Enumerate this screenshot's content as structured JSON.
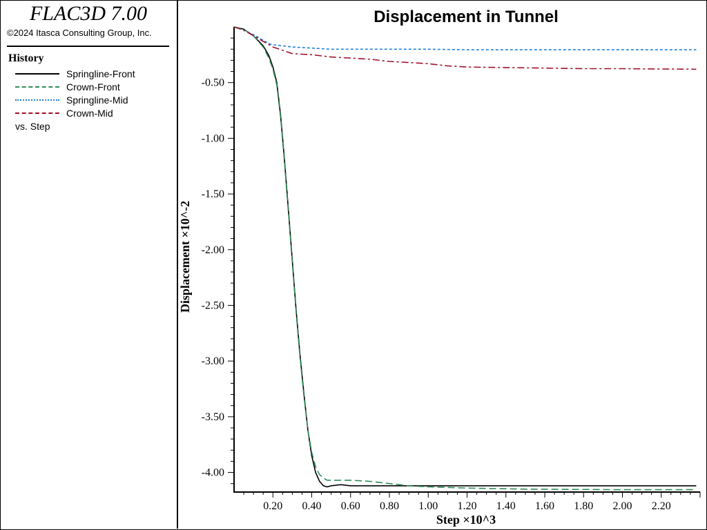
{
  "app": {
    "title": "FLAC3D 7.00",
    "copyright": "©2024 Itasca Consulting Group, Inc."
  },
  "legend": {
    "heading": "History",
    "footer": "vs. Step"
  },
  "colors": {
    "springline_front": "#000000",
    "crown_front": "#2e8b57",
    "springline_mid": "#1e7fd8",
    "crown_mid": "#a0102a"
  },
  "chart_data": {
    "type": "line",
    "title": "Displacement in Tunnel",
    "xlabel": "Step ×10^3",
    "ylabel": "Displacement ×10^-2",
    "xlim": [
      0,
      2.4
    ],
    "ylim": [
      -4.17,
      0
    ],
    "x_ticks": [
      "0.20",
      "0.40",
      "0.60",
      "0.80",
      "1.00",
      "1.20",
      "1.40",
      "1.60",
      "1.80",
      "2.00",
      "2.20"
    ],
    "y_ticks": [
      "-0.50",
      "-1.00",
      "-1.50",
      "-2.00",
      "-2.50",
      "-3.00",
      "-3.50",
      "-4.00"
    ],
    "grid": false,
    "legend_position": "left panel",
    "series": [
      {
        "name": "Springline-Front",
        "color": "#000000",
        "dash": "solid",
        "points": [
          [
            0,
            0
          ],
          [
            0.05,
            -0.02
          ],
          [
            0.1,
            -0.08
          ],
          [
            0.15,
            -0.17
          ],
          [
            0.18,
            -0.26
          ],
          [
            0.2,
            -0.36
          ],
          [
            0.22,
            -0.5
          ],
          [
            0.24,
            -0.8
          ],
          [
            0.26,
            -1.2
          ],
          [
            0.28,
            -1.65
          ],
          [
            0.3,
            -2.1
          ],
          [
            0.32,
            -2.55
          ],
          [
            0.34,
            -2.95
          ],
          [
            0.36,
            -3.3
          ],
          [
            0.38,
            -3.62
          ],
          [
            0.4,
            -3.85
          ],
          [
            0.42,
            -4.0
          ],
          [
            0.44,
            -4.08
          ],
          [
            0.46,
            -4.12
          ],
          [
            0.48,
            -4.13
          ],
          [
            0.5,
            -4.12
          ],
          [
            0.55,
            -4.11
          ],
          [
            0.6,
            -4.12
          ],
          [
            0.8,
            -4.12
          ],
          [
            1.0,
            -4.12
          ],
          [
            1.5,
            -4.12
          ],
          [
            2.0,
            -4.12
          ],
          [
            2.38,
            -4.12
          ]
        ]
      },
      {
        "name": "Crown-Front",
        "color": "#2e8b57",
        "dash": "10,5",
        "points": [
          [
            0,
            0
          ],
          [
            0.05,
            -0.02
          ],
          [
            0.1,
            -0.08
          ],
          [
            0.15,
            -0.18
          ],
          [
            0.18,
            -0.28
          ],
          [
            0.2,
            -0.38
          ],
          [
            0.22,
            -0.52
          ],
          [
            0.24,
            -0.82
          ],
          [
            0.26,
            -1.22
          ],
          [
            0.28,
            -1.67
          ],
          [
            0.3,
            -2.12
          ],
          [
            0.32,
            -2.57
          ],
          [
            0.34,
            -2.97
          ],
          [
            0.36,
            -3.32
          ],
          [
            0.38,
            -3.62
          ],
          [
            0.4,
            -3.82
          ],
          [
            0.42,
            -3.95
          ],
          [
            0.44,
            -4.02
          ],
          [
            0.46,
            -4.05
          ],
          [
            0.48,
            -4.07
          ],
          [
            0.5,
            -4.07
          ],
          [
            0.6,
            -4.07
          ],
          [
            0.7,
            -4.08
          ],
          [
            0.8,
            -4.1
          ],
          [
            0.9,
            -4.12
          ],
          [
            1.0,
            -4.13
          ],
          [
            1.2,
            -4.14
          ],
          [
            1.5,
            -4.15
          ],
          [
            2.0,
            -4.155
          ],
          [
            2.38,
            -4.155
          ]
        ]
      },
      {
        "name": "Springline-Mid",
        "color": "#1e7fd8",
        "dash": "4,3",
        "points": [
          [
            0,
            0
          ],
          [
            0.05,
            -0.03
          ],
          [
            0.1,
            -0.07
          ],
          [
            0.15,
            -0.12
          ],
          [
            0.18,
            -0.15
          ],
          [
            0.2,
            -0.16
          ],
          [
            0.25,
            -0.17
          ],
          [
            0.3,
            -0.18
          ],
          [
            0.4,
            -0.19
          ],
          [
            0.5,
            -0.2
          ],
          [
            0.6,
            -0.2
          ],
          [
            0.8,
            -0.2
          ],
          [
            1.0,
            -0.2
          ],
          [
            1.2,
            -0.205
          ],
          [
            1.6,
            -0.205
          ],
          [
            2.0,
            -0.205
          ],
          [
            2.38,
            -0.205
          ]
        ]
      },
      {
        "name": "Crown-Mid",
        "color": "#a0102a",
        "dash": "10,4,3,4",
        "points": [
          [
            0,
            0
          ],
          [
            0.05,
            -0.03
          ],
          [
            0.1,
            -0.08
          ],
          [
            0.15,
            -0.13
          ],
          [
            0.18,
            -0.16
          ],
          [
            0.2,
            -0.18
          ],
          [
            0.25,
            -0.21
          ],
          [
            0.3,
            -0.24
          ],
          [
            0.4,
            -0.25
          ],
          [
            0.5,
            -0.27
          ],
          [
            0.6,
            -0.28
          ],
          [
            0.7,
            -0.29
          ],
          [
            0.8,
            -0.31
          ],
          [
            0.9,
            -0.32
          ],
          [
            1.0,
            -0.33
          ],
          [
            1.1,
            -0.35
          ],
          [
            1.2,
            -0.36
          ],
          [
            1.4,
            -0.365
          ],
          [
            1.6,
            -0.37
          ],
          [
            1.8,
            -0.375
          ],
          [
            2.0,
            -0.375
          ],
          [
            2.2,
            -0.378
          ],
          [
            2.38,
            -0.38
          ]
        ]
      }
    ]
  }
}
